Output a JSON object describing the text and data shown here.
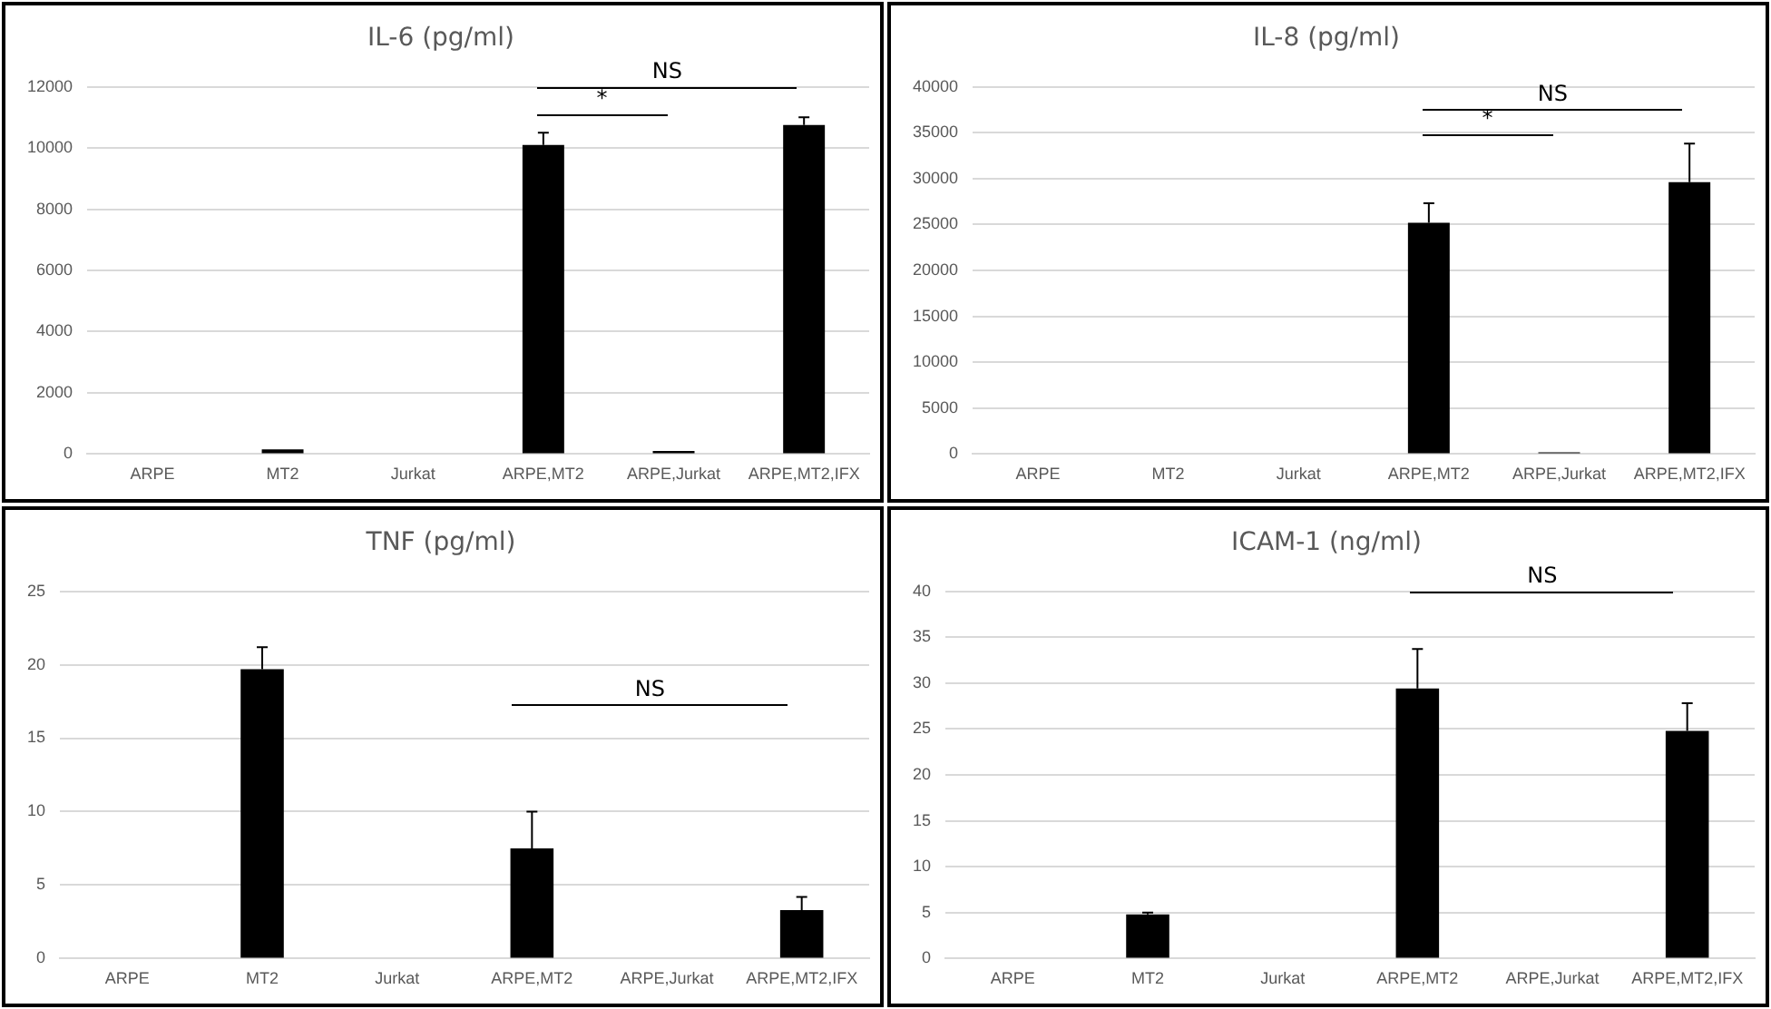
{
  "chart_data": [
    {
      "type": "bar",
      "title": "IL-6 (pg/ml)",
      "categories": [
        "ARPE",
        "MT2",
        "Jurkat",
        "ARPE,MT2",
        "ARPE,Jurkat",
        "ARPE,MT2,IFX"
      ],
      "values": [
        0,
        150,
        0,
        10100,
        100,
        10750
      ],
      "color": "#000000",
      "errors": [
        null,
        null,
        null,
        [
          10100,
          10500
        ],
        null,
        [
          10750,
          11000
        ]
      ],
      "ylim": [
        0,
        12000
      ],
      "yticks": [
        0,
        2000,
        4000,
        6000,
        8000,
        10000,
        12000
      ],
      "grid": "y",
      "annotations": [
        "NS",
        "*"
      ]
    },
    {
      "type": "bar",
      "title": "IL-8 (pg/ml)",
      "categories": [
        "ARPE",
        "MT2",
        "Jurkat",
        "ARPE,MT2",
        "ARPE,Jurkat",
        "ARPE,MT2,IFX"
      ],
      "values": [
        0,
        0,
        0,
        25200,
        200,
        29600
      ],
      "color": "#000000",
      "errors": [
        null,
        null,
        null,
        [
          25200,
          27300
        ],
        null,
        [
          29600,
          33800
        ]
      ],
      "ylim": [
        0,
        40000
      ],
      "yticks": [
        0,
        5000,
        10000,
        15000,
        20000,
        25000,
        30000,
        35000,
        40000
      ],
      "grid": "y",
      "annotations": [
        "NS",
        "*"
      ]
    },
    {
      "type": "bar",
      "title": "TNF (pg/ml)",
      "categories": [
        "ARPE",
        "MT2",
        "Jurkat",
        "ARPE,MT2",
        "ARPE,Jurkat",
        "ARPE,MT2,IFX"
      ],
      "values": [
        0,
        19.7,
        0,
        7.5,
        0,
        3.3
      ],
      "color": "#000000",
      "errors": [
        null,
        [
          19.7,
          21.2
        ],
        null,
        [
          7.5,
          10
        ],
        null,
        [
          3.3,
          4.2
        ]
      ],
      "ylim": [
        0,
        25
      ],
      "yticks": [
        0,
        5,
        10,
        15,
        20,
        25
      ],
      "grid": "y",
      "annotations": [
        "NS"
      ]
    },
    {
      "type": "bar",
      "title": "ICAM-1 (ng/ml)",
      "categories": [
        "ARPE",
        "MT2",
        "Jurkat",
        "ARPE,MT2",
        "ARPE,Jurkat",
        "ARPE,MT2,IFX"
      ],
      "values": [
        0,
        4.8,
        0,
        29.4,
        0,
        24.8
      ],
      "color": "#000000",
      "errors": [
        null,
        [
          4.8,
          5.0
        ],
        null,
        [
          29.4,
          33.7
        ],
        null,
        [
          24.8,
          27.8
        ]
      ],
      "ylim": [
        0,
        40
      ],
      "yticks": [
        0,
        5,
        10,
        15,
        20,
        25,
        30,
        35,
        40
      ],
      "grid": "y",
      "annotations": [
        "NS"
      ]
    }
  ]
}
